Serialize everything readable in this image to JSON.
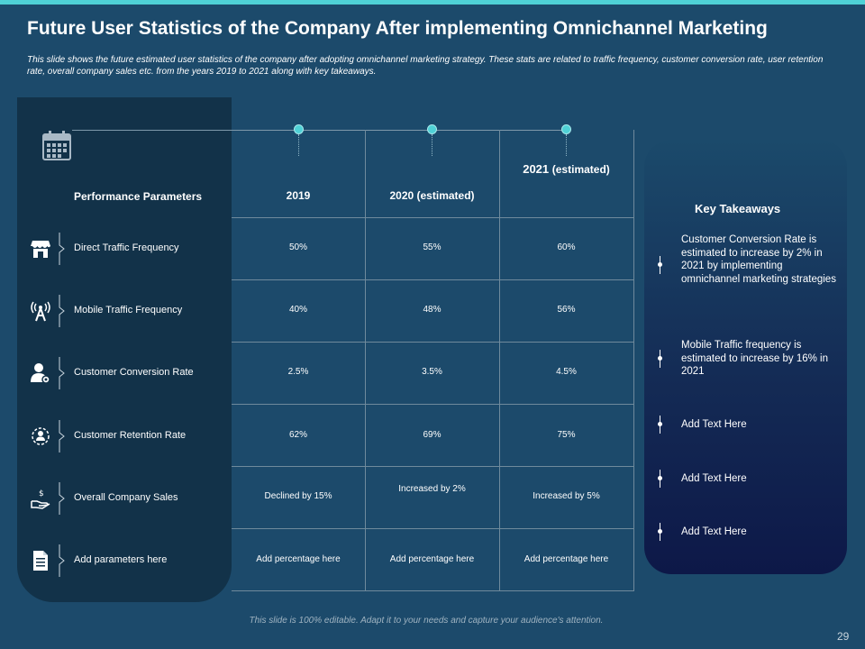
{
  "accent_color": "#4fd1d6",
  "slide": {
    "title": "Future User Statistics of the Company After implementing Omnichannel Marketing",
    "subtitle": "This slide shows the future estimated user statistics of the company after adopting omnichannel marketing strategy. These stats are related to traffic frequency, customer conversion rate, user retention rate, overall company sales etc. from the years 2019 to 2021 along with key takeaways.",
    "footer": "This slide is 100% editable. Adapt it to your needs and capture your audience's attention.",
    "page_number": "29"
  },
  "table": {
    "param_header": "Performance Parameters",
    "columns": [
      {
        "year": "2019",
        "note": ""
      },
      {
        "year": "2020",
        "note": "(estimated)"
      },
      {
        "year": "2021",
        "note": "(estimated)"
      }
    ],
    "rows": [
      {
        "label": "Direct Traffic Frequency",
        "icon": "store-icon",
        "values": [
          "50%",
          "55%",
          "60%"
        ]
      },
      {
        "label": "Mobile Traffic Frequency",
        "icon": "signal-tower-icon",
        "values": [
          "40%",
          "48%",
          "56%"
        ]
      },
      {
        "label": "Customer Conversion Rate",
        "icon": "user-settings-icon",
        "values": [
          "2.5%",
          "3.5%",
          "4.5%"
        ]
      },
      {
        "label": "Customer Retention Rate",
        "icon": "retention-cycle-icon",
        "values": [
          "62%",
          "69%",
          "75%"
        ]
      },
      {
        "label": "Overall Company Sales",
        "icon": "hand-dollar-icon",
        "values": [
          "Declined by 15%",
          "Increased by 2%",
          "Increased by 5%"
        ]
      },
      {
        "label": "Add parameters here",
        "icon": "document-icon",
        "values": [
          "Add percentage here",
          "Add percentage here",
          "Add percentage here"
        ]
      }
    ]
  },
  "takeaways": {
    "title": "Key Takeaways",
    "items": [
      "Customer Conversion Rate is estimated to increase by 2% in 2021 by implementing omnichannel marketing strategies",
      "Mobile Traffic frequency is estimated to increase by 16% in 2021",
      "Add Text Here",
      "Add Text Here",
      "Add Text Here"
    ]
  }
}
